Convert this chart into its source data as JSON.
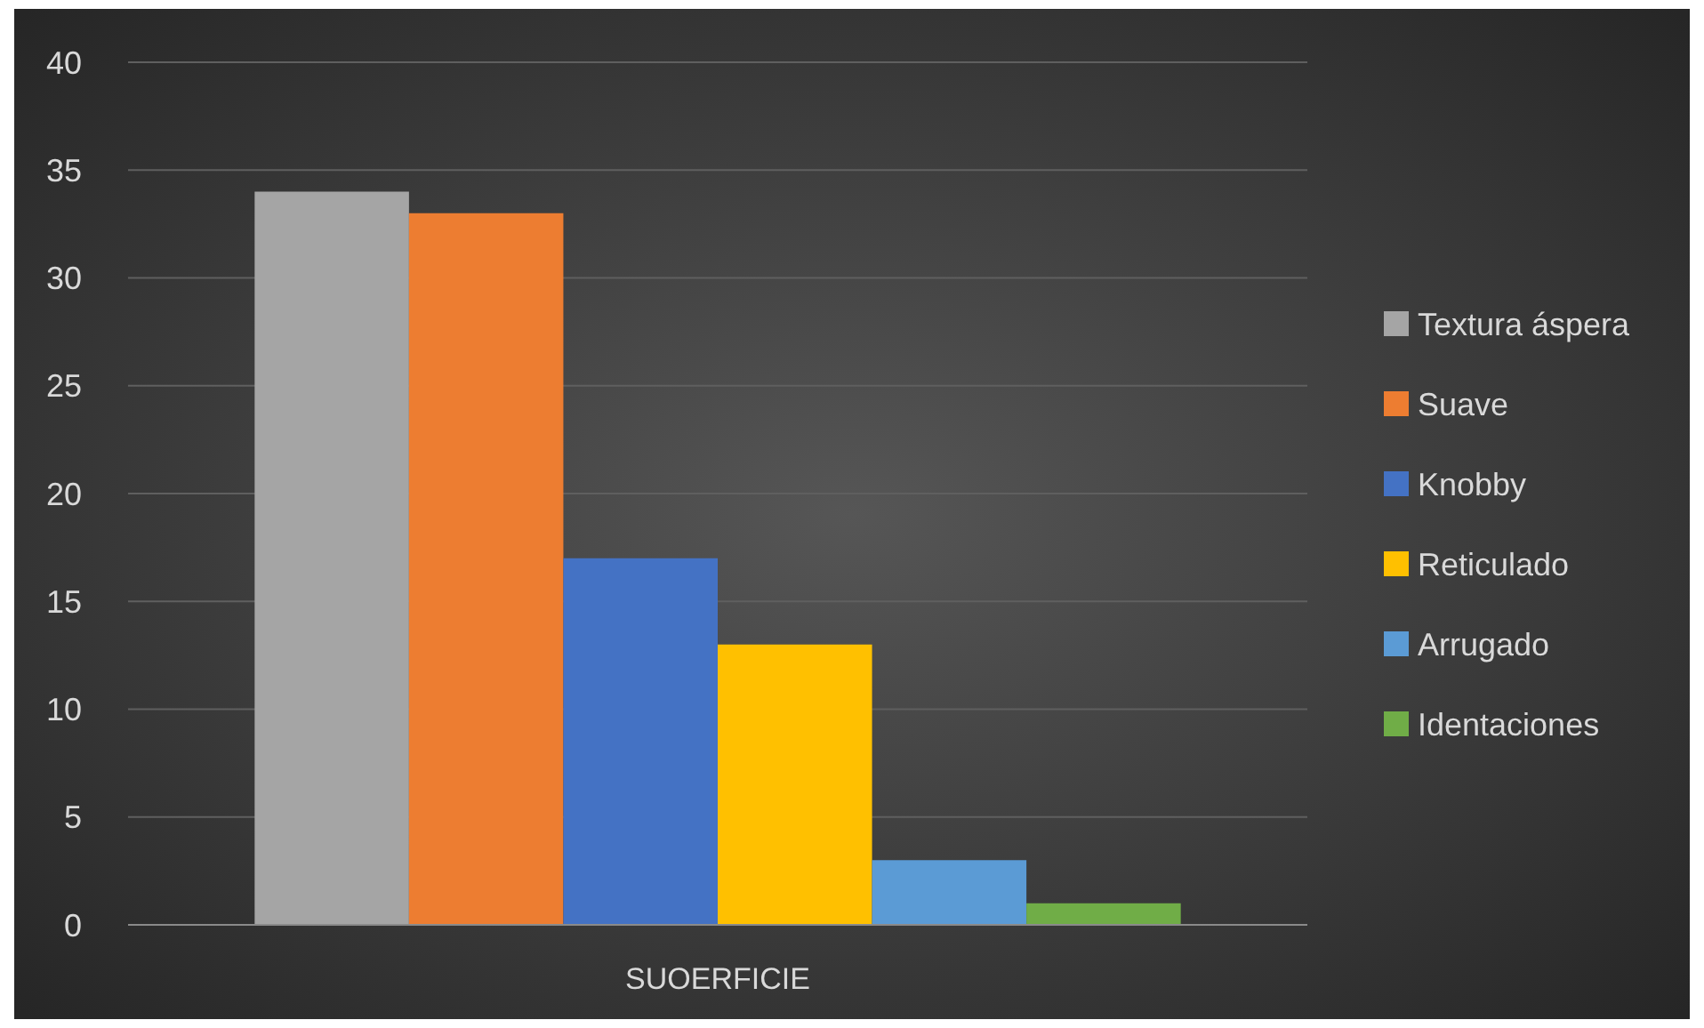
{
  "chart_data": {
    "type": "bar",
    "categories": [
      "SUOERFICIE"
    ],
    "series": [
      {
        "name": "Textura áspera",
        "color": "#a5a5a5",
        "values": [
          34
        ]
      },
      {
        "name": "Suave",
        "color": "#ed7d31",
        "values": [
          33
        ]
      },
      {
        "name": "Knobby",
        "color": "#4472c4",
        "values": [
          17
        ]
      },
      {
        "name": "Reticulado",
        "color": "#ffc000",
        "values": [
          13
        ]
      },
      {
        "name": "Arrugado",
        "color": "#5b9bd5",
        "values": [
          3
        ]
      },
      {
        "name": "Identaciones",
        "color": "#70ad47",
        "values": [
          1
        ]
      }
    ],
    "ylim": [
      0,
      40
    ],
    "yticks": [
      0,
      5,
      10,
      15,
      20,
      25,
      30,
      35,
      40
    ],
    "grid": "y",
    "legend": "right"
  }
}
